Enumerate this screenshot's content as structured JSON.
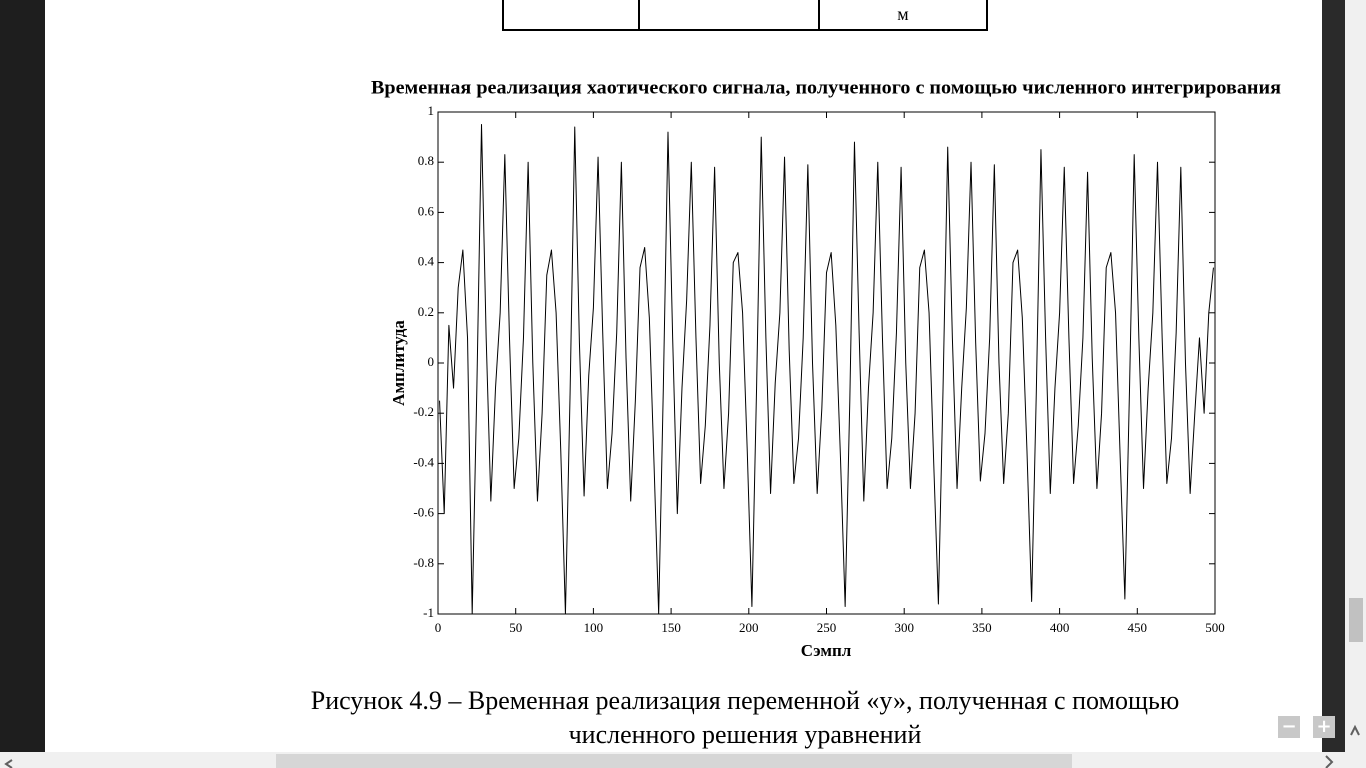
{
  "document": {
    "table_cell": "м",
    "caption": [
      "Рисунок 4.9 – Временная реализация переменной «у», полученная с помощью",
      "численного решения уравнений"
    ]
  },
  "viewer": {
    "zoom_out": "−",
    "zoom_in": "+"
  },
  "chart_data": {
    "type": "line",
    "title": "Временная реализация хаотического сигнала, полученного с помощью численного интегрирования",
    "xlabel": "Сэмпл",
    "ylabel": "Амплитуда",
    "color": "#000000",
    "xlim": [
      0,
      500
    ],
    "ylim": [
      -1,
      1
    ],
    "xticks": [
      0,
      50,
      100,
      150,
      200,
      250,
      300,
      350,
      400,
      450,
      500
    ],
    "yticks": [
      -1,
      -0.8,
      -0.6,
      -0.4,
      -0.2,
      0,
      0.2,
      0.4,
      0.6,
      0.8,
      1
    ],
    "x": [
      1,
      4,
      7,
      10,
      13,
      16,
      19,
      22,
      25,
      28,
      31,
      34,
      37,
      40,
      43,
      46,
      49,
      52,
      55,
      58,
      61,
      64,
      67,
      70,
      73,
      76,
      79,
      82,
      85,
      88,
      91,
      94,
      97,
      100,
      103,
      106,
      109,
      112,
      115,
      118,
      121,
      124,
      127,
      130,
      133,
      136,
      139,
      142,
      145,
      148,
      151,
      154,
      157,
      160,
      163,
      166,
      169,
      172,
      175,
      178,
      181,
      184,
      187,
      190,
      193,
      196,
      199,
      202,
      205,
      208,
      211,
      214,
      217,
      220,
      223,
      226,
      229,
      232,
      235,
      238,
      241,
      244,
      247,
      250,
      253,
      256,
      259,
      262,
      265,
      268,
      271,
      274,
      277,
      280,
      283,
      286,
      289,
      292,
      295,
      298,
      301,
      304,
      307,
      310,
      313,
      316,
      319,
      322,
      325,
      328,
      331,
      334,
      337,
      340,
      343,
      346,
      349,
      352,
      355,
      358,
      361,
      364,
      367,
      370,
      373,
      376,
      379,
      382,
      385,
      388,
      391,
      394,
      397,
      400,
      403,
      406,
      409,
      412,
      415,
      418,
      421,
      424,
      427,
      430,
      433,
      436,
      439,
      442,
      445,
      448,
      451,
      454,
      457,
      460,
      463,
      466,
      469,
      472,
      475,
      478,
      481,
      484,
      487,
      490,
      493,
      496,
      499
    ],
    "values": [
      -0.15,
      -0.6,
      0.15,
      -0.1,
      0.3,
      0.45,
      0.1,
      -1,
      -0.1,
      0.95,
      0.1,
      -0.55,
      -0.1,
      0.2,
      0.83,
      0.1,
      -0.5,
      -0.3,
      0.1,
      0.8,
      0.0,
      -0.55,
      -0.2,
      0.35,
      0.45,
      0.2,
      -0.35,
      -1,
      -0.12,
      0.94,
      0.08,
      -0.53,
      -0.05,
      0.22,
      0.82,
      0.12,
      -0.5,
      -0.28,
      0.12,
      0.8,
      0.02,
      -0.55,
      -0.15,
      0.38,
      0.46,
      0.18,
      -0.4,
      -1,
      -0.1,
      0.92,
      0.1,
      -0.6,
      -0.1,
      0.25,
      0.8,
      0.1,
      -0.48,
      -0.25,
      0.15,
      0.78,
      0.0,
      -0.5,
      -0.2,
      0.4,
      0.44,
      0.2,
      -0.35,
      -0.97,
      -0.1,
      0.9,
      0.1,
      -0.52,
      -0.08,
      0.2,
      0.82,
      0.05,
      -0.48,
      -0.3,
      0.1,
      0.79,
      0.0,
      -0.52,
      -0.18,
      0.36,
      0.44,
      0.15,
      -0.38,
      -0.97,
      -0.15,
      0.88,
      0.12,
      -0.55,
      -0.1,
      0.2,
      0.8,
      0.1,
      -0.5,
      -0.3,
      0.12,
      0.78,
      0.0,
      -0.5,
      -0.2,
      0.38,
      0.45,
      0.2,
      -0.4,
      -0.96,
      -0.1,
      0.86,
      0.1,
      -0.5,
      -0.1,
      0.22,
      0.8,
      0.08,
      -0.47,
      -0.28,
      0.1,
      0.79,
      0.0,
      -0.48,
      -0.2,
      0.4,
      0.45,
      0.18,
      -0.35,
      -0.95,
      -0.12,
      0.85,
      0.1,
      -0.52,
      -0.1,
      0.2,
      0.78,
      0.1,
      -0.48,
      -0.25,
      0.1,
      0.76,
      0.02,
      -0.5,
      -0.2,
      0.38,
      0.44,
      0.2,
      -0.38,
      -0.94,
      -0.1,
      0.83,
      0.1,
      -0.5,
      -0.1,
      0.2,
      0.8,
      0.1,
      -0.48,
      -0.3,
      0.12,
      0.78,
      0.0,
      -0.52,
      -0.2,
      0.1,
      -0.2,
      0.2,
      0.38
    ]
  }
}
